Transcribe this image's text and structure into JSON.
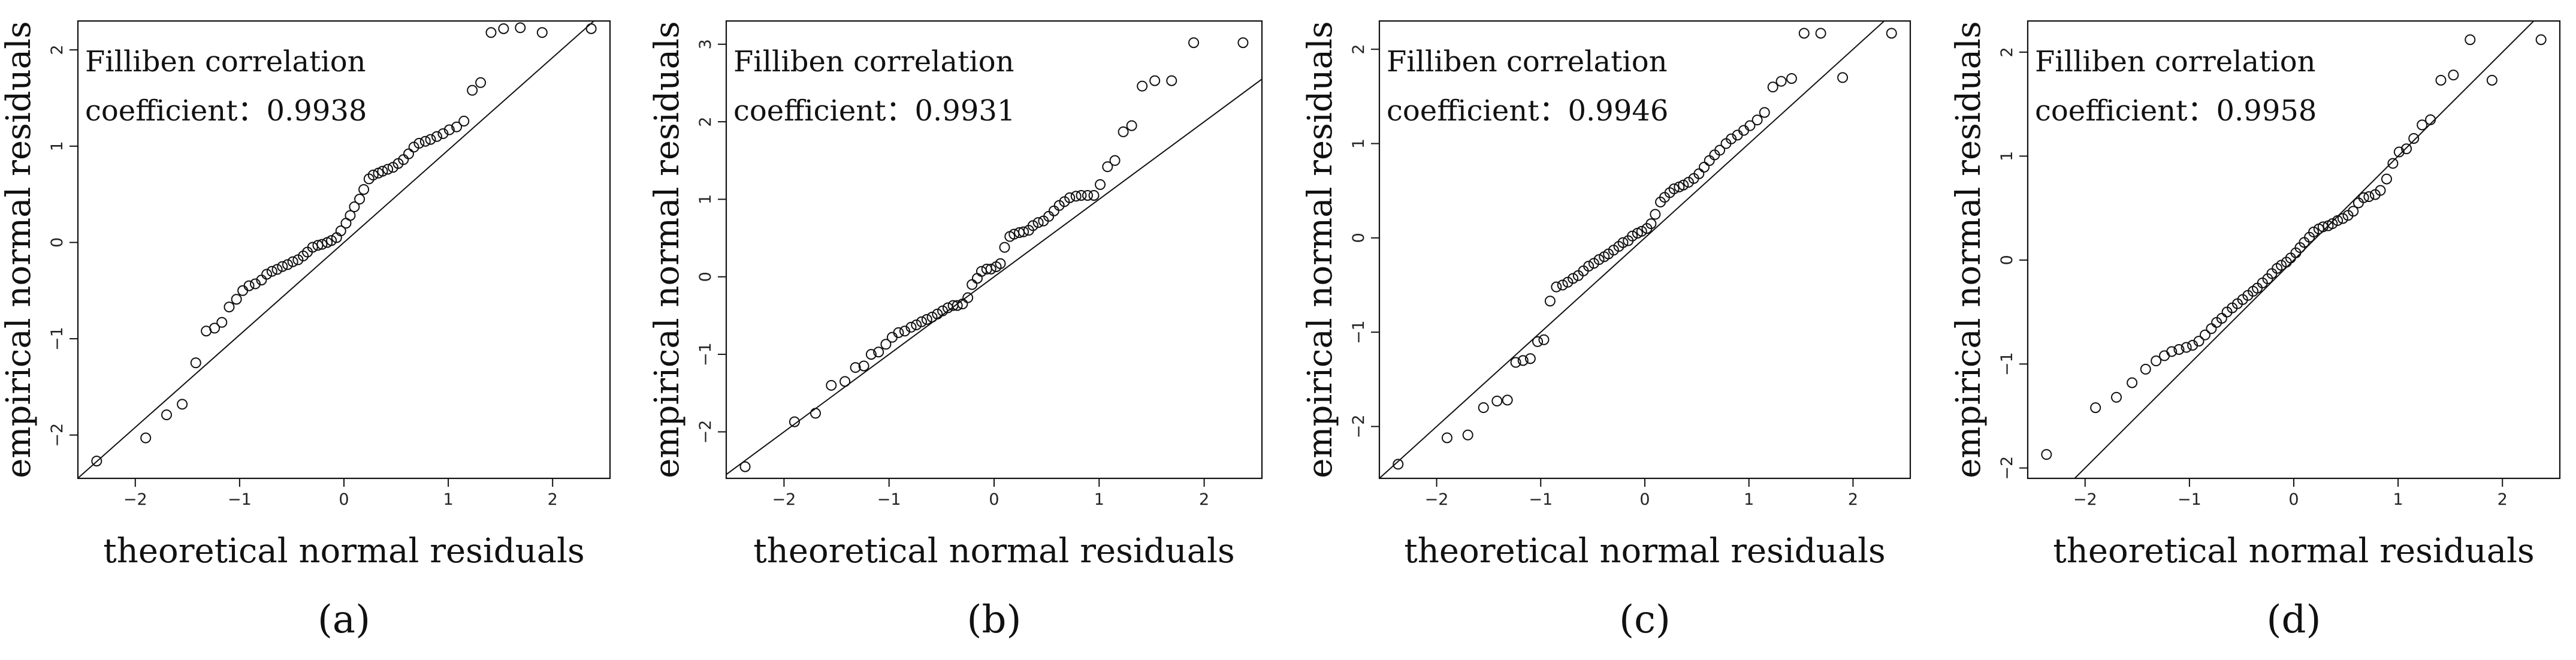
{
  "figure": {
    "xlabel": "theoretical normal residuals",
    "ylabel": "empirical normal residuals"
  },
  "chart_data": [
    {
      "type": "scatter",
      "caption": "(a)",
      "xlabel": "theoretical normal residuals",
      "ylabel": "empirical normal residuals",
      "annotation_line1": "Filliben correlation",
      "annotation_label": "coefficient：",
      "annotation_value": "0.9938",
      "xlim": [
        -2.55,
        2.55
      ],
      "ylim": [
        -2.45,
        2.3
      ],
      "xticks": [
        -2,
        -1,
        0,
        1,
        2
      ],
      "yticks": [
        -2,
        -1,
        0,
        1,
        2
      ],
      "tick_labels_x": [
        "−2",
        "−1",
        "0",
        "1",
        "2"
      ],
      "tick_labels_y": [
        "−2",
        "−1",
        "0",
        "1",
        "2"
      ],
      "reference_line": {
        "slope": 0.96,
        "intercept": 0.0
      },
      "x": [
        -2.37,
        -1.9,
        -1.7,
        -1.55,
        -1.42,
        -1.32,
        -1.24,
        -1.17,
        -1.1,
        -1.03,
        -0.97,
        -0.91,
        -0.85,
        -0.79,
        -0.74,
        -0.69,
        -0.64,
        -0.59,
        -0.54,
        -0.49,
        -0.44,
        -0.39,
        -0.35,
        -0.3,
        -0.25,
        -0.21,
        -0.16,
        -0.12,
        -0.07,
        -0.03,
        0.02,
        0.06,
        0.1,
        0.15,
        0.19,
        0.24,
        0.28,
        0.33,
        0.37,
        0.42,
        0.47,
        0.52,
        0.57,
        0.62,
        0.67,
        0.72,
        0.78,
        0.83,
        0.89,
        0.95,
        1.01,
        1.08,
        1.15,
        1.23,
        1.31,
        1.41,
        1.53,
        1.69,
        1.9,
        2.37
      ],
      "y": [
        -2.27,
        -2.03,
        -1.79,
        -1.68,
        -1.25,
        -0.92,
        -0.89,
        -0.83,
        -0.67,
        -0.59,
        -0.5,
        -0.45,
        -0.43,
        -0.39,
        -0.33,
        -0.3,
        -0.28,
        -0.25,
        -0.23,
        -0.2,
        -0.18,
        -0.14,
        -0.1,
        -0.05,
        -0.03,
        -0.02,
        0.0,
        0.02,
        0.05,
        0.12,
        0.2,
        0.28,
        0.37,
        0.45,
        0.55,
        0.66,
        0.7,
        0.72,
        0.74,
        0.76,
        0.78,
        0.82,
        0.86,
        0.92,
        0.99,
        1.03,
        1.05,
        1.07,
        1.1,
        1.13,
        1.17,
        1.2,
        1.26,
        1.58,
        1.66,
        2.18,
        2.22,
        2.23,
        2.18,
        2.22
      ]
    },
    {
      "type": "scatter",
      "caption": "(b)",
      "xlabel": "theoretical normal residuals",
      "ylabel": "empirical normal residuals",
      "annotation_line1": "Filliben correlation",
      "annotation_label": "coefficient：",
      "annotation_value": "0.9931",
      "xlim": [
        -2.55,
        2.55
      ],
      "ylim": [
        -2.6,
        3.3
      ],
      "xticks": [
        -2,
        -1,
        0,
        1,
        2
      ],
      "yticks": [
        -2,
        -1,
        0,
        1,
        2,
        3
      ],
      "tick_labels_x": [
        "−2",
        "−1",
        "0",
        "1",
        "2"
      ],
      "tick_labels_y": [
        "−2",
        "−1",
        "0",
        "1",
        "2",
        "3"
      ],
      "reference_line": {
        "slope": 1.0,
        "intercept": 0.0
      },
      "x": [
        -2.37,
        -1.9,
        -1.7,
        -1.55,
        -1.42,
        -1.32,
        -1.24,
        -1.17,
        -1.1,
        -1.03,
        -0.97,
        -0.91,
        -0.85,
        -0.79,
        -0.74,
        -0.69,
        -0.64,
        -0.59,
        -0.54,
        -0.49,
        -0.44,
        -0.39,
        -0.35,
        -0.3,
        -0.25,
        -0.21,
        -0.16,
        -0.12,
        -0.07,
        -0.03,
        0.02,
        0.06,
        0.1,
        0.15,
        0.19,
        0.24,
        0.28,
        0.33,
        0.37,
        0.42,
        0.47,
        0.52,
        0.57,
        0.62,
        0.67,
        0.72,
        0.78,
        0.83,
        0.89,
        0.95,
        1.01,
        1.08,
        1.15,
        1.23,
        1.31,
        1.41,
        1.53,
        1.69,
        1.9,
        2.37
      ],
      "y": [
        -2.45,
        -1.87,
        -1.76,
        -1.4,
        -1.35,
        -1.17,
        -1.15,
        -1.0,
        -0.97,
        -0.87,
        -0.78,
        -0.72,
        -0.7,
        -0.65,
        -0.62,
        -0.58,
        -0.55,
        -0.52,
        -0.48,
        -0.44,
        -0.4,
        -0.37,
        -0.37,
        -0.35,
        -0.27,
        -0.1,
        -0.02,
        0.07,
        0.1,
        0.1,
        0.13,
        0.17,
        0.38,
        0.52,
        0.55,
        0.57,
        0.58,
        0.6,
        0.66,
        0.7,
        0.72,
        0.78,
        0.85,
        0.92,
        0.97,
        1.02,
        1.04,
        1.05,
        1.05,
        1.05,
        1.19,
        1.42,
        1.5,
        1.87,
        1.95,
        2.46,
        2.53,
        2.53,
        3.02,
        3.02
      ]
    },
    {
      "type": "scatter",
      "caption": "(c)",
      "xlabel": "theoretical normal residuals",
      "ylabel": "empirical normal residuals",
      "annotation_line1": "Filliben correlation",
      "annotation_label": "coefficient：",
      "annotation_value": "0.9946",
      "xlim": [
        -2.55,
        2.55
      ],
      "ylim": [
        -2.55,
        2.3
      ],
      "xticks": [
        -2,
        -1,
        0,
        1,
        2
      ],
      "yticks": [
        -2,
        -1,
        0,
        1,
        2
      ],
      "tick_labels_x": [
        "−2",
        "−1",
        "0",
        "1",
        "2"
      ],
      "tick_labels_y": [
        "−2",
        "−1",
        "0",
        "1",
        "2"
      ],
      "reference_line": {
        "slope": 1.0,
        "intercept": 0.0
      },
      "x": [
        -2.37,
        -1.9,
        -1.7,
        -1.55,
        -1.42,
        -1.32,
        -1.24,
        -1.17,
        -1.1,
        -1.03,
        -0.97,
        -0.91,
        -0.85,
        -0.79,
        -0.74,
        -0.69,
        -0.64,
        -0.59,
        -0.54,
        -0.49,
        -0.44,
        -0.39,
        -0.35,
        -0.3,
        -0.25,
        -0.21,
        -0.16,
        -0.12,
        -0.07,
        -0.03,
        0.02,
        0.06,
        0.1,
        0.15,
        0.19,
        0.24,
        0.28,
        0.33,
        0.37,
        0.42,
        0.47,
        0.52,
        0.57,
        0.62,
        0.67,
        0.72,
        0.78,
        0.83,
        0.89,
        0.95,
        1.01,
        1.08,
        1.15,
        1.23,
        1.31,
        1.41,
        1.53,
        1.69,
        1.9,
        2.37
      ],
      "y": [
        -2.4,
        -2.12,
        -2.09,
        -1.8,
        -1.73,
        -1.72,
        -1.32,
        -1.3,
        -1.28,
        -1.1,
        -1.08,
        -0.67,
        -0.52,
        -0.5,
        -0.47,
        -0.43,
        -0.4,
        -0.35,
        -0.3,
        -0.27,
        -0.23,
        -0.2,
        -0.17,
        -0.13,
        -0.09,
        -0.05,
        -0.03,
        0.02,
        0.05,
        0.07,
        0.1,
        0.15,
        0.25,
        0.38,
        0.43,
        0.48,
        0.52,
        0.54,
        0.56,
        0.59,
        0.63,
        0.68,
        0.75,
        0.82,
        0.88,
        0.93,
        1.0,
        1.05,
        1.09,
        1.14,
        1.19,
        1.25,
        1.33,
        1.6,
        1.66,
        1.69,
        2.17,
        2.17,
        1.7,
        2.17
      ]
    },
    {
      "type": "scatter",
      "caption": "(d)",
      "xlabel": "theoretical normal residuals",
      "ylabel": "empirical normal residuals",
      "annotation_line1": "Filliben correlation",
      "annotation_label": "coefficient：",
      "annotation_value": "0.9958",
      "xlim": [
        -2.55,
        2.55
      ],
      "ylim": [
        -2.1,
        2.3
      ],
      "xticks": [
        -2,
        -1,
        0,
        1,
        2
      ],
      "yticks": [
        -2,
        -1,
        0,
        1,
        2
      ],
      "tick_labels_x": [
        "−2",
        "−1",
        "0",
        "1",
        "2"
      ],
      "tick_labels_y": [
        "−2",
        "−1",
        "0",
        "1",
        "2"
      ],
      "reference_line": {
        "slope": 1.0,
        "intercept": 0.0
      },
      "x": [
        -2.37,
        -1.9,
        -1.7,
        -1.55,
        -1.42,
        -1.32,
        -1.24,
        -1.17,
        -1.1,
        -1.03,
        -0.97,
        -0.91,
        -0.85,
        -0.79,
        -0.74,
        -0.69,
        -0.64,
        -0.59,
        -0.54,
        -0.49,
        -0.44,
        -0.39,
        -0.35,
        -0.3,
        -0.25,
        -0.21,
        -0.16,
        -0.12,
        -0.07,
        -0.03,
        0.02,
        0.06,
        0.1,
        0.15,
        0.19,
        0.24,
        0.28,
        0.33,
        0.37,
        0.42,
        0.47,
        0.52,
        0.57,
        0.62,
        0.67,
        0.72,
        0.78,
        0.83,
        0.89,
        0.95,
        1.01,
        1.08,
        1.15,
        1.23,
        1.31,
        1.41,
        1.53,
        1.69,
        1.9,
        2.37
      ],
      "y": [
        -1.87,
        -1.42,
        -1.32,
        -1.18,
        -1.05,
        -0.97,
        -0.92,
        -0.88,
        -0.86,
        -0.84,
        -0.82,
        -0.78,
        -0.72,
        -0.66,
        -0.6,
        -0.56,
        -0.5,
        -0.46,
        -0.42,
        -0.38,
        -0.34,
        -0.3,
        -0.27,
        -0.22,
        -0.18,
        -0.13,
        -0.08,
        -0.05,
        -0.02,
        0.02,
        0.07,
        0.12,
        0.17,
        0.22,
        0.27,
        0.3,
        0.32,
        0.33,
        0.35,
        0.38,
        0.4,
        0.43,
        0.47,
        0.55,
        0.6,
        0.61,
        0.63,
        0.67,
        0.78,
        0.93,
        1.04,
        1.07,
        1.17,
        1.3,
        1.35,
        1.73,
        1.78,
        2.12,
        1.73,
        2.12
      ]
    }
  ]
}
